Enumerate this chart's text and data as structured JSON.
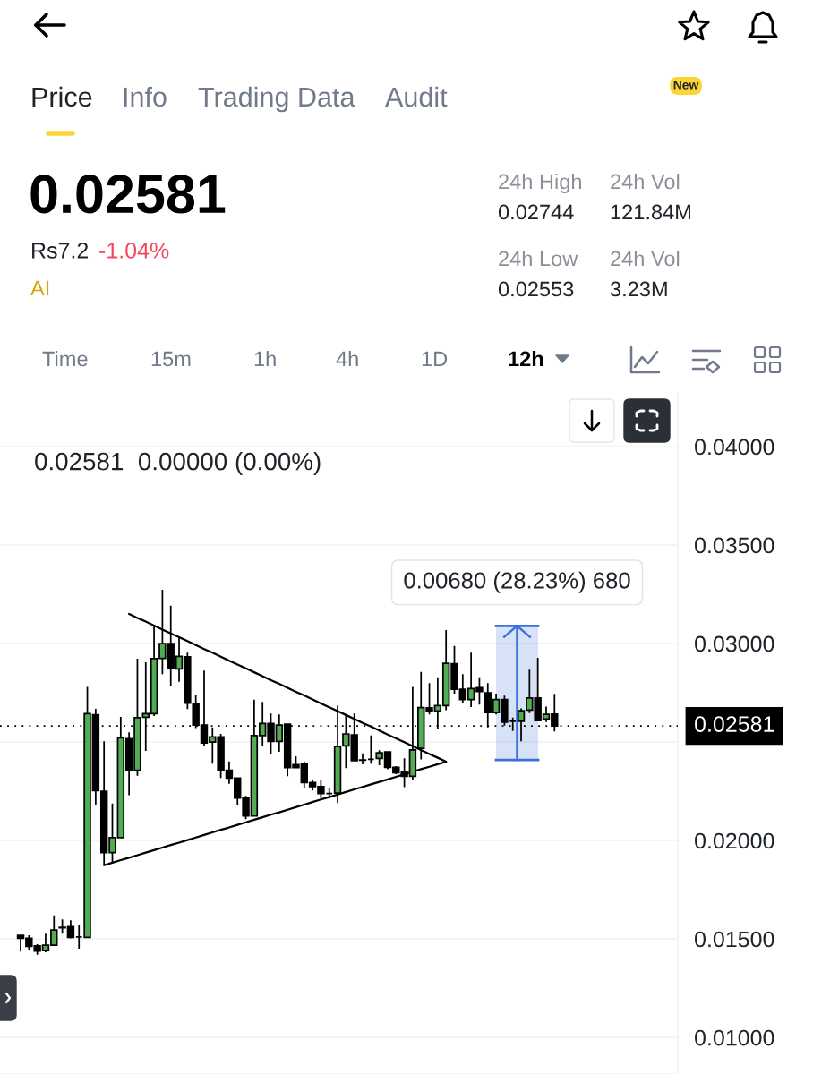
{
  "chart_data": {
    "type": "candlestick",
    "subtitle": "0.02581  0.00000 (0.00%)",
    "annotations": [
      "Price",
      "Info",
      "Trading Data",
      "Audit",
      "New",
      "0.02581",
      "Rs7.2",
      "-1.04%",
      "AI",
      "24h High",
      "0.02744",
      "24h Vol",
      "121.84M",
      "24h Low",
      "0.02553",
      "24h Vol",
      "3.23M",
      "Time",
      "15m",
      "1h",
      "4h",
      "1D",
      "12h"
    ],
    "categories": [
      null,
      null,
      null,
      null,
      null,
      null,
      null,
      null,
      null,
      null,
      null,
      null,
      null,
      null,
      null,
      null,
      null,
      null,
      null,
      null,
      null,
      null,
      null,
      null,
      null,
      null,
      null,
      null,
      null,
      null,
      null,
      null,
      null,
      null,
      null,
      null,
      null,
      null,
      null,
      null,
      null,
      null,
      null,
      null,
      null,
      null,
      null,
      null,
      null,
      null,
      null,
      null,
      null,
      null,
      null,
      null,
      null,
      null,
      null,
      null,
      null,
      null,
      null,
      null,
      null
    ],
    "ohlc": [
      [
        0.01518,
        0.01521,
        0.01435,
        0.01503
      ],
      [
        0.01503,
        0.01518,
        0.01442,
        0.01462
      ],
      [
        0.01465,
        0.01473,
        0.0142,
        0.01438
      ],
      [
        0.01441,
        0.01526,
        0.01432,
        0.01468
      ],
      [
        0.01468,
        0.0162,
        0.01468,
        0.01545
      ],
      [
        0.01559,
        0.01599,
        0.01526,
        0.01556
      ],
      [
        0.01562,
        0.01594,
        0.01503,
        0.01508
      ],
      [
        0.0151,
        0.01571,
        0.0145,
        0.0151
      ],
      [
        0.01508,
        0.0278,
        0.01508,
        0.02644
      ],
      [
        0.02638,
        0.02668,
        0.02177,
        0.02253
      ],
      [
        0.0225,
        0.02503,
        0.01874,
        0.01938
      ],
      [
        0.01938,
        0.02188,
        0.01882,
        0.02014
      ],
      [
        0.02014,
        0.02627,
        0.02014,
        0.02521
      ],
      [
        0.02517,
        0.02549,
        0.0223,
        0.02359
      ],
      [
        0.02356,
        0.02923,
        0.02329,
        0.02623
      ],
      [
        0.02626,
        0.02905,
        0.02455,
        0.02644
      ],
      [
        0.02644,
        0.03094,
        0.02632,
        0.02923
      ],
      [
        0.02924,
        0.03273,
        0.02844,
        0.02999
      ],
      [
        0.02999,
        0.03192,
        0.02786,
        0.02874
      ],
      [
        0.02871,
        0.03033,
        0.02806,
        0.02935
      ],
      [
        0.02932,
        0.02953,
        0.02667,
        0.02697
      ],
      [
        0.02695,
        0.02741,
        0.02571,
        0.02586
      ],
      [
        0.02586,
        0.02862,
        0.0248,
        0.02495
      ],
      [
        0.02499,
        0.02574,
        0.0239,
        0.02526
      ],
      [
        0.02526,
        0.02541,
        0.02317,
        0.02359
      ],
      [
        0.02356,
        0.02401,
        0.02288,
        0.02317
      ],
      [
        0.02317,
        0.02317,
        0.02177,
        0.02215
      ],
      [
        0.02215,
        0.02226,
        0.02108,
        0.02124
      ],
      [
        0.02124,
        0.02715,
        0.02124,
        0.02533
      ],
      [
        0.02533,
        0.02703,
        0.0248,
        0.02594
      ],
      [
        0.02594,
        0.02644,
        0.0244,
        0.02503
      ],
      [
        0.02503,
        0.0264,
        0.0245,
        0.02586
      ],
      [
        0.0259,
        0.0259,
        0.02326,
        0.0237
      ],
      [
        0.02385,
        0.02427,
        0.02367,
        0.0237
      ],
      [
        0.0239,
        0.02401,
        0.02268,
        0.02294
      ],
      [
        0.02294,
        0.02306,
        0.02253,
        0.02273
      ],
      [
        0.02273,
        0.02309,
        0.02215,
        0.02238
      ],
      [
        0.02238,
        0.02268,
        0.02215,
        0.02238
      ],
      [
        0.02241,
        0.02685,
        0.0219,
        0.02477
      ],
      [
        0.0248,
        0.0264,
        0.02367,
        0.02541
      ],
      [
        0.02536,
        0.02644,
        0.02401,
        0.02405
      ],
      [
        0.02409,
        0.02442,
        0.02386,
        0.02407
      ],
      [
        0.02412,
        0.02533,
        0.0239,
        0.02412
      ],
      [
        0.02417,
        0.02458,
        0.02382,
        0.02445
      ],
      [
        0.0245,
        0.0245,
        0.02362,
        0.02371
      ],
      [
        0.02371,
        0.02377,
        0.02336,
        0.02344
      ],
      [
        0.02347,
        0.02417,
        0.02271,
        0.02326
      ],
      [
        0.02326,
        0.0278,
        0.02306,
        0.0246
      ],
      [
        0.02468,
        0.02856,
        0.02412,
        0.02674
      ],
      [
        0.02673,
        0.02799,
        0.0264,
        0.02658
      ],
      [
        0.02658,
        0.02829,
        0.02564,
        0.02685
      ],
      [
        0.02685,
        0.03068,
        0.02662,
        0.029
      ],
      [
        0.02897,
        0.02988,
        0.02745,
        0.02768
      ],
      [
        0.02768,
        0.02844,
        0.027,
        0.02715
      ],
      [
        0.02715,
        0.02953,
        0.02677,
        0.02771
      ],
      [
        0.02776,
        0.02829,
        0.0269,
        0.02756
      ],
      [
        0.0275,
        0.02799,
        0.02574,
        0.0265
      ],
      [
        0.0265,
        0.02745,
        0.0264,
        0.02715
      ],
      [
        0.02715,
        0.02735,
        0.02583,
        0.02601
      ],
      [
        0.02605,
        0.02624,
        0.02556,
        0.02605
      ],
      [
        0.02605,
        0.0267,
        0.02503,
        0.02659
      ],
      [
        0.02662,
        0.02867,
        0.02647,
        0.02723
      ],
      [
        0.02723,
        0.02927,
        0.02605,
        0.02609
      ],
      [
        0.02617,
        0.0268,
        0.02601,
        0.0264
      ],
      [
        0.02642,
        0.02744,
        0.02553,
        0.02581
      ]
    ],
    "colors": [
      "#000000",
      "#000000",
      "#000000",
      "#52ad52",
      "#52ad52",
      "#000000",
      "#000000",
      "#000000",
      "#52ad52",
      "#000000",
      "#000000",
      "#52ad52",
      "#52ad52",
      "#000000",
      "#52ad52",
      "#52ad52",
      "#52ad52",
      "#52ad52",
      "#000000",
      "#52ad52",
      "#000000",
      "#000000",
      "#000000",
      "#52ad52",
      "#000000",
      "#000000",
      "#000000",
      "#000000",
      "#52ad52",
      "#52ad52",
      "#000000",
      "#52ad52",
      "#000000",
      "#000000",
      "#000000",
      "#000000",
      "#000000",
      "#000000",
      "#52ad52",
      "#52ad52",
      "#000000",
      "#000000",
      "#000000",
      "#52ad52",
      "#000000",
      "#000000",
      "#000000",
      "#52ad52",
      "#52ad52",
      "#000000",
      "#52ad52",
      "#52ad52",
      "#000000",
      "#000000",
      "#52ad52",
      "#000000",
      "#000000",
      "#52ad52",
      "#000000",
      "#000000",
      "#52ad52",
      "#52ad52",
      "#000000",
      "#52ad52",
      "#000000"
    ],
    "series": [
      {
        "type": "line",
        "color": "#000000",
        "values": [
          null,
          null,
          null,
          null,
          null,
          null,
          null,
          null,
          null,
          null,
          null,
          null,
          null,
          0.0315,
          0.0313,
          0.03111,
          0.03091,
          0.03071,
          0.03051,
          0.03032,
          0.03012,
          0.02992,
          0.02972,
          0.02953,
          0.02933,
          0.02913,
          0.02893,
          0.02874,
          0.02854,
          0.02834,
          0.02814,
          0.02795,
          0.02775,
          0.02755,
          0.02736,
          0.02716,
          0.02696,
          0.02676,
          0.02657,
          0.02637,
          0.02617,
          0.02597,
          0.02578,
          0.02558,
          0.02538,
          0.02518,
          0.02499,
          0.02479,
          0.02459,
          0.02439,
          0.0242,
          0.024,
          null,
          null,
          null,
          null,
          null,
          null,
          null,
          null,
          null,
          null,
          null,
          null,
          null
        ]
      },
      {
        "type": "line",
        "color": "#000000",
        "values": [
          null,
          null,
          null,
          null,
          null,
          null,
          null,
          null,
          null,
          null,
          0.01874,
          0.01887,
          0.019,
          0.01912,
          0.01925,
          0.01938,
          0.01951,
          0.01964,
          0.01977,
          0.01989,
          0.02002,
          0.02015,
          0.02028,
          0.02041,
          0.02054,
          0.02066,
          0.02079,
          0.02092,
          0.02105,
          0.02118,
          0.02131,
          0.02143,
          0.02156,
          0.02169,
          0.02182,
          0.02195,
          0.02208,
          0.0222,
          0.02233,
          0.02246,
          0.02259,
          0.02272,
          0.02285,
          0.02297,
          0.0231,
          0.02323,
          0.02336,
          0.02349,
          0.02362,
          0.02374,
          0.02387,
          0.024,
          null,
          null,
          null,
          null,
          null,
          null,
          null,
          null,
          null,
          null,
          null,
          null,
          null
        ]
      }
    ],
    "ylim": [
      0.00814,
      0.04268
    ],
    "yticks": [
      {
        "value": 0.01,
        "label": "0.01000"
      },
      {
        "value": 0.015,
        "label": "0.01500"
      },
      {
        "value": 0.02,
        "label": "0.02000"
      },
      {
        "value": 0.025,
        "label": null
      },
      {
        "value": 0.03,
        "label": "0.03000"
      },
      {
        "value": 0.035,
        "label": "0.03500"
      },
      {
        "value": 0.04,
        "label": "0.04000"
      }
    ],
    "tick_labels": "y",
    "grid": "y",
    "ref_lines": [
      {
        "axis": "y",
        "value": 0.02581,
        "label": "0.02581",
        "line_style": "dotted",
        "color": "#000000"
      }
    ],
    "bands": [
      {
        "axis": "y",
        "from": 0.02409,
        "to": 0.03089,
        "label": "0.00680 (28.23%) 680",
        "color": "#3b6fd9"
      }
    ]
  }
}
